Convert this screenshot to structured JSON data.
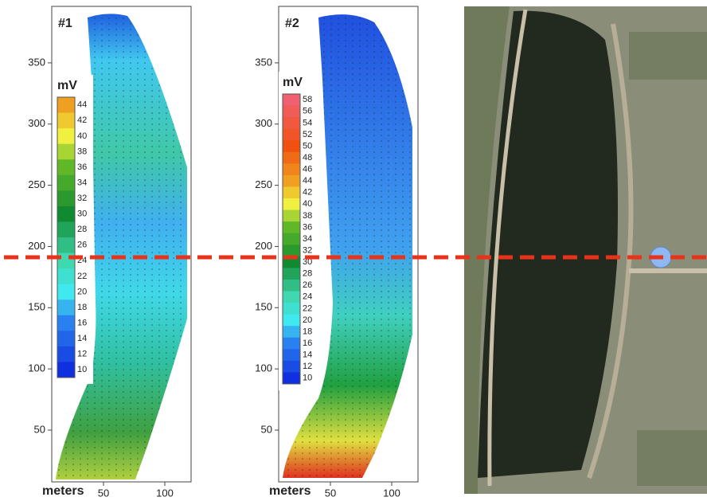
{
  "panels": [
    {
      "label": "#1",
      "colorbar": {
        "title": "mV",
        "ticks": [
          44,
          42,
          40,
          38,
          36,
          34,
          32,
          30,
          28,
          26,
          24,
          22,
          20,
          18,
          16,
          14,
          12,
          10
        ]
      },
      "y_ticks": [
        50,
        100,
        150,
        200,
        250,
        300,
        350
      ],
      "x_ticks": [
        50,
        100
      ],
      "x_axis_label": "meters"
    },
    {
      "label": "#2",
      "colorbar": {
        "title": "mV",
        "ticks": [
          58,
          56,
          54,
          52,
          50,
          48,
          46,
          44,
          42,
          40,
          38,
          36,
          34,
          32,
          30,
          28,
          26,
          24,
          22,
          20,
          18,
          16,
          14,
          12,
          10
        ]
      },
      "y_ticks": [
        50,
        100,
        150,
        200,
        250,
        300,
        350
      ],
      "x_ticks": [
        50,
        100
      ],
      "x_axis_label": "meters"
    }
  ]
}
